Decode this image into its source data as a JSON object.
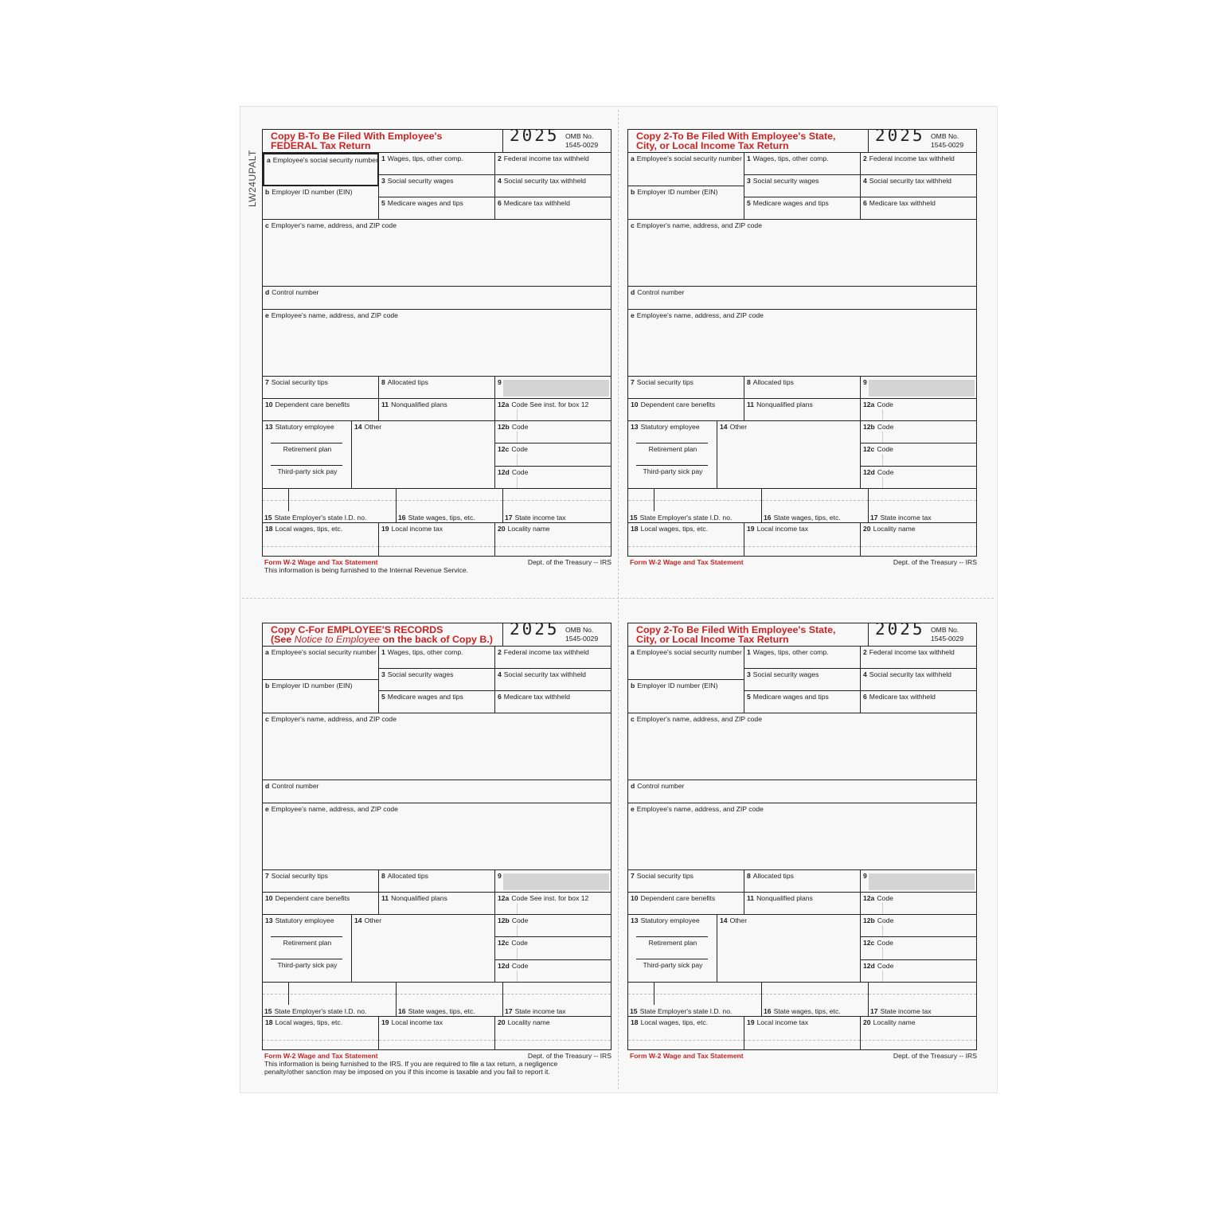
{
  "side_code": "LW24UPALT",
  "boxes": {
    "a": {
      "num": "a",
      "label": "Employee's social security number"
    },
    "b": {
      "num": "b",
      "label": "Employer ID number (EIN)"
    },
    "1": {
      "num": "1",
      "label": "Wages, tips, other comp."
    },
    "2": {
      "num": "2",
      "label": "Federal income tax withheld"
    },
    "3": {
      "num": "3",
      "label": "Social security wages"
    },
    "4": {
      "num": "4",
      "label": "Social security tax withheld"
    },
    "5": {
      "num": "5",
      "label": "Medicare wages and tips"
    },
    "6": {
      "num": "6",
      "label": "Medicare tax withheld"
    },
    "c": {
      "num": "c",
      "label": "Employer's name, address, and ZIP code"
    },
    "d": {
      "num": "d",
      "label": "Control number"
    },
    "e": {
      "num": "e",
      "label": "Employee's name, address, and ZIP code"
    },
    "7": {
      "num": "7",
      "label": "Social security tips"
    },
    "8": {
      "num": "8",
      "label": "Allocated tips"
    },
    "9": {
      "num": "9",
      "label": ""
    },
    "10": {
      "num": "10",
      "label": "Dependent care benefits"
    },
    "11": {
      "num": "11",
      "label": "Nonqualified plans"
    },
    "12a": {
      "num": "12a",
      "label": "Code"
    },
    "12b": {
      "num": "12b",
      "label": "Code"
    },
    "12c": {
      "num": "12c",
      "label": "Code"
    },
    "12d": {
      "num": "12d",
      "label": "Code"
    },
    "13": {
      "num": "13",
      "label": "Statutory employee",
      "retirement": "Retirement plan",
      "sick": "Third-party sick pay"
    },
    "14": {
      "num": "14",
      "label": "Other"
    },
    "15": {
      "num": "15",
      "label": "State Employer's state I.D. no."
    },
    "16": {
      "num": "16",
      "label": "State wages, tips, etc."
    },
    "17": {
      "num": "17",
      "label": "State income tax"
    },
    "18": {
      "num": "18",
      "label": "Local wages, tips, etc."
    },
    "19": {
      "num": "19",
      "label": "Local income tax"
    },
    "20": {
      "num": "20",
      "label": "Locality name"
    }
  },
  "forms": [
    {
      "title_line1": "Copy B-To Be Filed With Employee's",
      "title_line2_a": "FEDERAL Tax Return",
      "title_line2_i": "",
      "title_line2_b": "",
      "year": "2025",
      "omb_label": "OMB No.",
      "omb_number": "1545-0029",
      "box12a_note": "See inst. for box 12",
      "footer_form": "Form W-2 Wage and Tax Statement",
      "footer_dept": "Dept. of the Treasury -- IRS",
      "note_lines": [
        "This information is being furnished to the Internal Revenue Service."
      ]
    },
    {
      "title_line1": "Copy 2-To Be Filed With Employee's State,",
      "title_line2_a": "City, or Local Income Tax Return",
      "title_line2_i": "",
      "title_line2_b": "",
      "year": "2025",
      "omb_label": "OMB No.",
      "omb_number": "1545-0029",
      "box12a_note": "",
      "footer_form": "Form W-2 Wage and Tax Statement",
      "footer_dept": "Dept. of the Treasury -- IRS",
      "note_lines": []
    },
    {
      "title_line1": "Copy C-For EMPLOYEE'S RECORDS",
      "title_line2_a": "(See ",
      "title_line2_i": "Notice to Employee",
      "title_line2_b": " on the back of Copy B.)",
      "year": "2025",
      "omb_label": "OMB No.",
      "omb_number": "1545-0029",
      "box12a_note": "See inst. for box 12",
      "footer_form": "Form W-2 Wage and Tax Statement",
      "footer_dept": "Dept. of the Treasury -- IRS",
      "note_lines": [
        "This information is being furnished to the IRS. If you are required to file a tax return, a negligence",
        "penalty/other sanction may be imposed on you if this income is taxable and you fail to report it."
      ]
    },
    {
      "title_line1": "Copy 2-To Be Filed With Employee's State,",
      "title_line2_a": "City, or Local Income Tax Return",
      "title_line2_i": "",
      "title_line2_b": "",
      "year": "2025",
      "omb_label": "OMB No.",
      "omb_number": "1545-0029",
      "box12a_note": "",
      "footer_form": "Form W-2 Wage and Tax Statement",
      "footer_dept": "Dept. of the Treasury -- IRS",
      "note_lines": []
    }
  ]
}
